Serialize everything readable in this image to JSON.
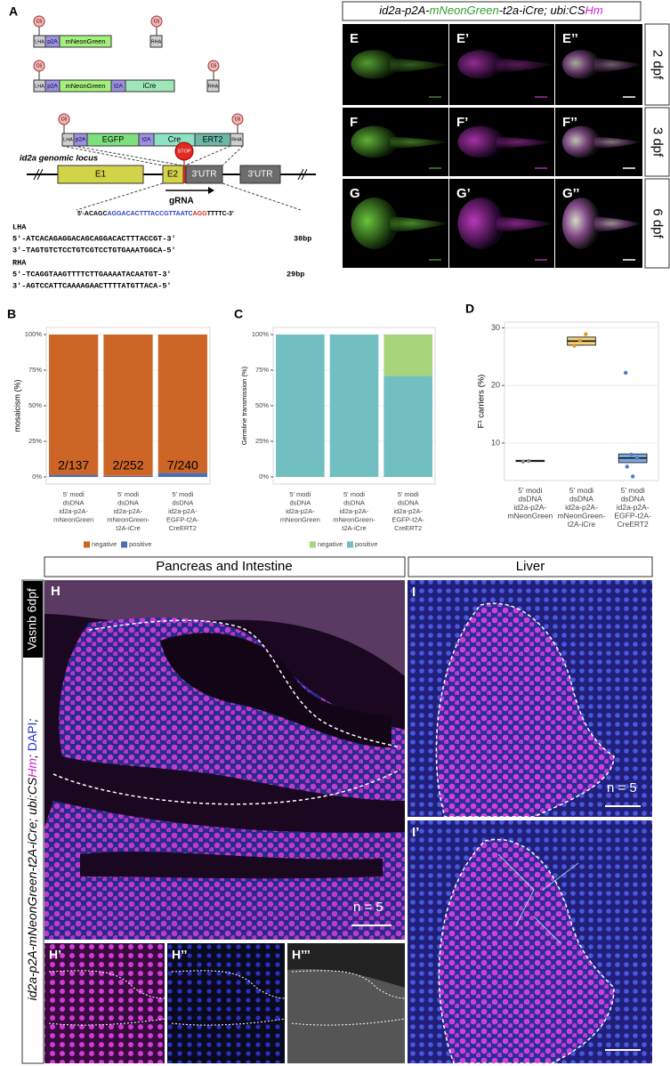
{
  "panel_a": {
    "label": "A",
    "c6": "C6",
    "construct1": [
      "LHA",
      "p2A",
      "mNeonGreen",
      "RHA"
    ],
    "construct2": [
      "LHA",
      "p2A",
      "mNeonGreen",
      "t2A",
      "iCre",
      "RHA"
    ],
    "construct3": [
      "LHA",
      "p2A",
      "EGFP",
      "t2A",
      "Cre",
      "ERT2",
      "RHA"
    ],
    "locus_title": "id2a genomic locus",
    "exons": [
      "E1",
      "E2",
      "3'UTR",
      "3'UTR"
    ],
    "stop": "STOP",
    "grna": "gRNA",
    "sequence": [
      "5'-ACAGC",
      "AGGACACTTTACCGTTAATC",
      "AGG",
      "TTTTC-3'"
    ],
    "lha_title": "LHA",
    "lha": [
      "5'-ATCACAGAGGACAGCAGGACACTTTACCGT-3'",
      "3'-TAGTGTCTCCTGTCGTCCTGTGAAATGGCA-5'"
    ],
    "lha_length": "30bp",
    "rha_title": "RHA",
    "rha": [
      "5'-TCAGGTAAGTTTTCTTGAAAATACAATGT-3'",
      "3'-AGTCCATTCAAAAGAACTTTTATGTTACA-5'"
    ],
    "rha_length": "29bp"
  },
  "panel_efg": {
    "header": [
      "id2a-p2A-",
      "mNeonGreen",
      "-t2a-iCre; ubi:CS",
      "Hm"
    ],
    "labels": [
      [
        "E",
        "E’",
        "E’’"
      ],
      [
        "F",
        "F’",
        "F’’"
      ],
      [
        "G",
        "G’",
        "G’’"
      ]
    ],
    "stages": [
      "2 dpf",
      "3 dpf",
      "6 dpf"
    ]
  },
  "chart_data": [
    {
      "type": "bar",
      "panel": "B",
      "ylabel": "mosaicism (%)",
      "categories": [
        [
          "5' modi",
          "dsDNA",
          "id2a-p2A-",
          "mNeonGreen"
        ],
        [
          "5' modi",
          "dsDNA",
          "id2a-p2A-",
          "mNeonGreen-",
          "t2A-iCre"
        ],
        [
          "5' modi",
          "dsDNA",
          "id2a-p2A-",
          "EGFP-t2A-",
          "CreERT2"
        ]
      ],
      "series": [
        {
          "name": "negative",
          "color": "#cc6526",
          "values": [
            98.5,
            99.2,
            97.1
          ]
        },
        {
          "name": "positive",
          "color": "#4d6db3",
          "values": [
            1.5,
            0.8,
            2.9
          ]
        }
      ],
      "annotations": [
        "2/137",
        "2/252",
        "7/240"
      ],
      "ylim": [
        0,
        100
      ],
      "yticks": [
        {
          "value": 0,
          "label": "0%"
        },
        {
          "value": 25,
          "label": "25%"
        },
        {
          "value": 50,
          "label": "50%"
        },
        {
          "value": 75,
          "label": "75%"
        },
        {
          "value": 100,
          "label": "100%"
        }
      ],
      "grid": true,
      "legend": "bottom"
    },
    {
      "type": "bar",
      "panel": "C",
      "ylabel": "Germline transmission (%)",
      "categories": [
        [
          "5' modi",
          "dsDNA",
          "id2a-p2A-",
          "mNeonGreen"
        ],
        [
          "5' modi",
          "dsDNA",
          "id2a-p2A-",
          "mNeonGreen-",
          "t2A-iCre"
        ],
        [
          "5' modi",
          "dsDNA",
          "id2a-p2A-",
          "EGFP-t2A-",
          "CreERT2"
        ]
      ],
      "series": [
        {
          "name": "negative",
          "color": "#a8d47c",
          "values": [
            0,
            0,
            29
          ]
        },
        {
          "name": "positive",
          "color": "#72bfc2",
          "values": [
            100,
            100,
            71
          ]
        }
      ],
      "ylim": [
        0,
        100
      ],
      "yticks": [
        {
          "value": 0,
          "label": "0%"
        },
        {
          "value": 25,
          "label": "25%"
        },
        {
          "value": 50,
          "label": "50%"
        },
        {
          "value": 75,
          "label": "75%"
        },
        {
          "value": 100,
          "label": "100%"
        }
      ],
      "grid": true,
      "legend": "bottom"
    },
    {
      "type": "box",
      "panel": "D",
      "ylabel": "F¹ carriers (%)",
      "categories": [
        [
          "5' modi",
          "dsDNA",
          "id2a-p2A-",
          "mNeonGreen"
        ],
        [
          "5' modi",
          "dsDNA",
          "id2a-p2A-",
          "mNeonGreen-",
          "t2A-iCre"
        ],
        [
          "5' modi",
          "dsDNA",
          "id2a-p2A-",
          "EGFP-t2A-",
          "CreERT2"
        ]
      ],
      "boxes": [
        {
          "q1": 6.8,
          "median": 6.9,
          "q3": 7.0,
          "color": "#eeeeee"
        },
        {
          "q1": 27.0,
          "median": 27.7,
          "q3": 28.4,
          "color": "#f3d27c"
        },
        {
          "q1": 6.6,
          "median": 7.4,
          "q3": 8.1,
          "color": "#7ba7dc"
        }
      ],
      "points": [
        [
          6.8,
          6.9
        ],
        [
          26.9,
          27.8,
          28.9
        ],
        [
          22.2,
          8.0,
          7.4,
          5.9,
          4.2
        ]
      ],
      "point_colors": [
        "#888888",
        "#e39a2c",
        "#4f7fc8"
      ],
      "ylim": [
        3.5,
        31
      ],
      "yticks": [
        10,
        20,
        30
      ],
      "grid": true
    }
  ],
  "panel_hi": {
    "headers": [
      "Pancreas and Intestine",
      "Liver"
    ],
    "side_label": [
      "id2a-p2A-mNeonGreen-t2A-iCre; ubi:CS",
      "Hm",
      "; ",
      "DAPI",
      "; "
    ],
    "side_tag": "Vasnb 6dpf",
    "labels": [
      "H",
      "I",
      "I’",
      "H’",
      "H’’",
      "H’’’"
    ],
    "n_label": "n = 5"
  }
}
